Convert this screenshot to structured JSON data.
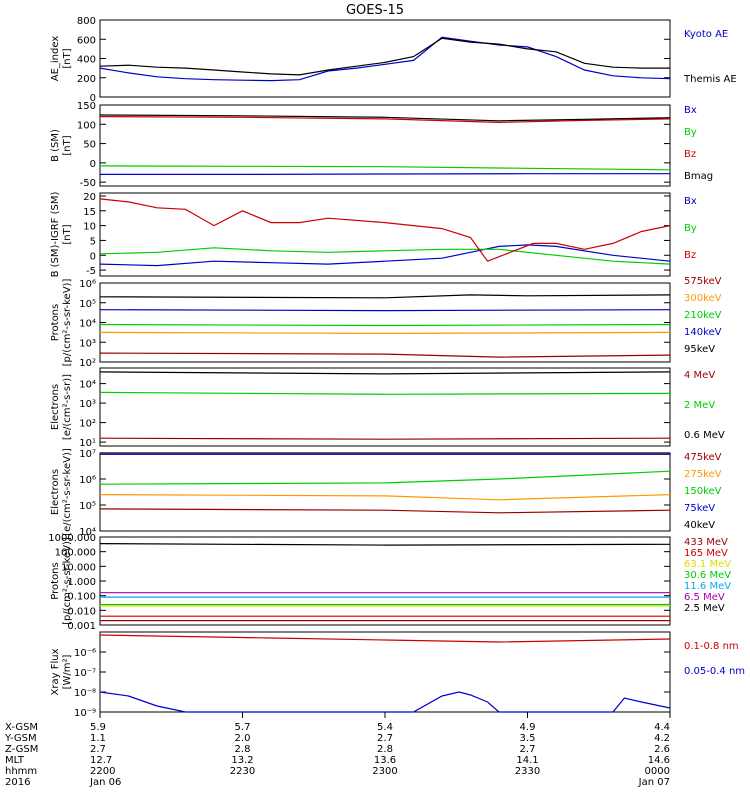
{
  "title": "GOES-15",
  "colors": {
    "black": "#000000",
    "blue": "#0000cc",
    "green": "#00cc00",
    "red": "#cc0000",
    "darkred": "#990000",
    "orange": "#ff9900",
    "yellow": "#dddd00",
    "cyan": "#00aaee",
    "purple": "#aa00aa"
  },
  "chart_data": [
    {
      "type": "line",
      "id": "ae",
      "ylabel": [
        "AE_index",
        "[nT]"
      ],
      "ticks": [
        "0",
        "200",
        "400",
        "600",
        "800"
      ],
      "ylim": [
        0,
        800
      ],
      "scale": "linear",
      "series": [
        {
          "name": "Kyoto AE",
          "color": "blue",
          "x": [
            0,
            0.05,
            0.1,
            0.15,
            0.2,
            0.25,
            0.3,
            0.35,
            0.4,
            0.45,
            0.5,
            0.55,
            0.6,
            0.65,
            0.7,
            0.75,
            0.8,
            0.85,
            0.9,
            0.95,
            1
          ],
          "y": [
            300,
            250,
            210,
            190,
            180,
            175,
            170,
            180,
            270,
            300,
            340,
            380,
            620,
            580,
            540,
            520,
            420,
            280,
            220,
            200,
            190
          ]
        },
        {
          "name": "Themis AE",
          "color": "black",
          "x": [
            0,
            0.05,
            0.1,
            0.15,
            0.2,
            0.25,
            0.3,
            0.35,
            0.4,
            0.45,
            0.5,
            0.55,
            0.6,
            0.65,
            0.7,
            0.75,
            0.8,
            0.85,
            0.9,
            0.95,
            1
          ],
          "y": [
            320,
            330,
            310,
            300,
            280,
            260,
            240,
            230,
            280,
            320,
            360,
            420,
            610,
            570,
            550,
            500,
            470,
            350,
            310,
            300,
            300
          ]
        }
      ]
    },
    {
      "type": "line",
      "id": "bsm",
      "ylabel": [
        "B (SM)",
        "[nT]"
      ],
      "ticks": [
        "-50",
        "0",
        "50",
        "100",
        "150"
      ],
      "ylim": [
        -60,
        150
      ],
      "scale": "linear",
      "series": [
        {
          "name": "Bx",
          "color": "blue",
          "x": [
            0,
            0.25,
            0.5,
            0.75,
            1
          ],
          "y": [
            -30,
            -30,
            -29,
            -28,
            -28
          ]
        },
        {
          "name": "By",
          "color": "green",
          "x": [
            0,
            0.25,
            0.5,
            0.75,
            1
          ],
          "y": [
            -8,
            -9,
            -10,
            -14,
            -18
          ]
        },
        {
          "name": "Bz",
          "color": "red",
          "x": [
            0,
            0.25,
            0.5,
            0.7,
            0.85,
            1
          ],
          "y": [
            120,
            118,
            114,
            105,
            110,
            114
          ]
        },
        {
          "name": "Bmag",
          "color": "black",
          "x": [
            0,
            0.25,
            0.5,
            0.7,
            0.85,
            1
          ],
          "y": [
            124,
            122,
            118,
            109,
            113,
            117
          ]
        }
      ]
    },
    {
      "type": "line",
      "id": "bigrf",
      "ylabel": [
        "B (SM)-IGRF (SM)",
        "[nT]"
      ],
      "ticks": [
        "-5",
        "0",
        "5",
        "10",
        "15",
        "20"
      ],
      "ylim": [
        -7,
        21
      ],
      "scale": "linear",
      "series": [
        {
          "name": "Bx",
          "color": "blue",
          "x": [
            0,
            0.1,
            0.2,
            0.3,
            0.4,
            0.5,
            0.6,
            0.65,
            0.7,
            0.75,
            0.8,
            0.9,
            1
          ],
          "y": [
            -3,
            -3.5,
            -2,
            -2.5,
            -3,
            -2,
            -1,
            1,
            3,
            3.5,
            3,
            0,
            -2
          ]
        },
        {
          "name": "By",
          "color": "green",
          "x": [
            0,
            0.1,
            0.2,
            0.3,
            0.4,
            0.5,
            0.6,
            0.7,
            0.8,
            0.9,
            1
          ],
          "y": [
            0.5,
            1,
            2.5,
            1.5,
            1,
            1.5,
            2,
            2,
            0,
            -2,
            -3
          ]
        },
        {
          "name": "Bz",
          "color": "red",
          "x": [
            0,
            0.05,
            0.1,
            0.15,
            0.2,
            0.25,
            0.3,
            0.35,
            0.4,
            0.5,
            0.6,
            0.65,
            0.68,
            0.72,
            0.76,
            0.8,
            0.85,
            0.9,
            0.95,
            1
          ],
          "y": [
            19,
            18,
            16,
            15.5,
            10,
            15,
            11,
            11,
            12.5,
            11,
            9,
            6,
            -2,
            1,
            4,
            4,
            2,
            4,
            8,
            10
          ]
        }
      ]
    },
    {
      "type": "line",
      "id": "protons",
      "ylabel": [
        "Protons",
        "[p/(cm²-s-sr-keV)]"
      ],
      "ticks": [
        "10²",
        "10³",
        "10⁴",
        "10⁵",
        "10⁶"
      ],
      "ylim": [
        2,
        6
      ],
      "scale": "log",
      "series": [
        {
          "name": "575keV",
          "color": "darkred",
          "x": [
            0,
            0.5,
            0.7,
            1
          ],
          "y": [
            2.45,
            2.4,
            2.25,
            2.35
          ]
        },
        {
          "name": "300keV",
          "color": "orange",
          "x": [
            0,
            0.5,
            1
          ],
          "y": [
            3.5,
            3.45,
            3.5
          ]
        },
        {
          "name": "210keV",
          "color": "green",
          "x": [
            0,
            0.5,
            1
          ],
          "y": [
            3.9,
            3.85,
            3.9
          ]
        },
        {
          "name": "140keV",
          "color": "blue",
          "x": [
            0,
            0.5,
            1
          ],
          "y": [
            4.65,
            4.6,
            4.65
          ]
        },
        {
          "name": "95keV",
          "color": "black",
          "x": [
            0,
            0.5,
            0.65,
            0.75,
            1
          ],
          "y": [
            5.3,
            5.25,
            5.4,
            5.35,
            5.4
          ]
        }
      ]
    },
    {
      "type": "line",
      "id": "electrons-mev",
      "ylabel": [
        "Electrons",
        "[e/(cm²-s-sr)]"
      ],
      "ticks": [
        "10¹",
        "10²",
        "10³",
        "10⁴"
      ],
      "ylim": [
        0.8,
        4.8
      ],
      "scale": "log",
      "series": [
        {
          "name": "4 MeV",
          "color": "darkred",
          "x": [
            0,
            0.5,
            1
          ],
          "y": [
            1.2,
            1.15,
            1.2
          ]
        },
        {
          "name": "2 MeV",
          "color": "green",
          "x": [
            0,
            0.5,
            1
          ],
          "y": [
            3.55,
            3.45,
            3.5
          ]
        },
        {
          "name": "0.6 MeV",
          "color": "black",
          "x": [
            0,
            0.5,
            1
          ],
          "y": [
            4.6,
            4.5,
            4.6
          ]
        }
      ]
    },
    {
      "type": "line",
      "id": "electrons-kev",
      "ylabel": [
        "Electrons",
        "[e/(cm²-s-sr-keV)]"
      ],
      "ticks": [
        "10⁴",
        "10⁵",
        "10⁶",
        "10⁷"
      ],
      "ylim": [
        4,
        7
      ],
      "scale": "log",
      "series": [
        {
          "name": "475keV",
          "color": "darkred",
          "x": [
            0,
            0.5,
            0.7,
            1
          ],
          "y": [
            4.85,
            4.8,
            4.7,
            4.8
          ]
        },
        {
          "name": "275keV",
          "color": "orange",
          "x": [
            0,
            0.5,
            0.7,
            1
          ],
          "y": [
            5.4,
            5.35,
            5.2,
            5.4
          ]
        },
        {
          "name": "150keV",
          "color": "green",
          "x": [
            0,
            0.5,
            0.7,
            1
          ],
          "y": [
            5.8,
            5.85,
            6.0,
            6.3
          ]
        },
        {
          "name": "75keV",
          "color": "blue",
          "x": [
            0,
            0.5,
            1
          ],
          "y": [
            6.95,
            6.95,
            6.95
          ]
        },
        {
          "name": "40keV",
          "color": "black",
          "x": [
            0,
            0.5,
            1
          ],
          "y": [
            7.0,
            7.0,
            7.0
          ]
        }
      ]
    },
    {
      "type": "line",
      "id": "protons-mev",
      "ylabel": [
        "Protons",
        "[p/(cm²-s-sr-keV)]"
      ],
      "ticks": [
        "0.001",
        "0.010",
        "0.100",
        "1.000",
        "10.000",
        "100.000",
        "1000.000"
      ],
      "ylim": [
        -3,
        3
      ],
      "scale": "log",
      "series": [
        {
          "name": "433 MeV",
          "color": "darkred",
          "x": [
            0,
            0.5,
            1
          ],
          "y": [
            -2.7,
            -2.7,
            -2.7
          ]
        },
        {
          "name": "165 MeV",
          "color": "red",
          "x": [
            0,
            0.5,
            1
          ],
          "y": [
            -2.4,
            -2.4,
            -2.4
          ]
        },
        {
          "name": "63.1 MeV",
          "color": "yellow",
          "x": [
            0,
            0.5,
            1
          ],
          "y": [
            -1.7,
            -1.7,
            -1.7
          ]
        },
        {
          "name": "30.6 MeV",
          "color": "green",
          "x": [
            0,
            0.5,
            1
          ],
          "y": [
            -1.6,
            -1.6,
            -1.6
          ]
        },
        {
          "name": "11.6 MeV",
          "color": "cyan",
          "x": [
            0,
            0.5,
            1
          ],
          "y": [
            -1.1,
            -1.1,
            -1.1
          ]
        },
        {
          "name": "6.5 MeV",
          "color": "purple",
          "x": [
            0,
            0.5,
            1
          ],
          "y": [
            -0.8,
            -0.8,
            -0.8
          ]
        },
        {
          "name": "2.5 MeV",
          "color": "black",
          "x": [
            0,
            0.5,
            1
          ],
          "y": [
            2.55,
            2.45,
            2.5
          ]
        }
      ]
    },
    {
      "type": "line",
      "id": "xray",
      "ylabel": [
        "Xray Flux",
        "[W/m²]"
      ],
      "ticks": [
        "10⁻⁹",
        "10⁻⁸",
        "10⁻⁷",
        "10⁻⁶"
      ],
      "ylim": [
        -9,
        -5
      ],
      "scale": "log",
      "series": [
        {
          "name": "0.1-0.8 nm",
          "color": "red",
          "x": [
            0,
            0.3,
            0.5,
            0.7,
            1
          ],
          "y": [
            -5.15,
            -5.3,
            -5.4,
            -5.5,
            -5.35
          ]
        },
        {
          "name": "0.05-0.4 nm",
          "color": "blue",
          "x": [
            0,
            0.05,
            0.1,
            0.15,
            0.2,
            0.5,
            0.55,
            0.6,
            0.63,
            0.65,
            0.68,
            0.7,
            0.9,
            0.92,
            0.95,
            1
          ],
          "y": [
            -8.0,
            -8.2,
            -8.7,
            -9,
            -9,
            -9,
            -9,
            -8.2,
            -8.0,
            -8.15,
            -8.5,
            -9,
            -9,
            -8.3,
            -8.5,
            -8.8
          ]
        }
      ]
    }
  ],
  "footer": {
    "rows": [
      {
        "label": "X-GSM",
        "values": [
          "5.9",
          "5.7",
          "5.4",
          "4.9",
          "4.4"
        ]
      },
      {
        "label": "Y-GSM",
        "values": [
          "1.1",
          "2.0",
          "2.7",
          "3.5",
          "4.2"
        ]
      },
      {
        "label": "Z-GSM",
        "values": [
          "2.7",
          "2.8",
          "2.8",
          "2.7",
          "2.6"
        ]
      },
      {
        "label": "MLT",
        "values": [
          "12.7",
          "13.2",
          "13.6",
          "14.1",
          "14.6"
        ]
      },
      {
        "label": "hhmm",
        "values": [
          "2200",
          "2230",
          "2300",
          "2330",
          "0000"
        ]
      },
      {
        "label": "2016",
        "values": [
          "Jan 06",
          "",
          "",
          "",
          "Jan 07"
        ]
      }
    ]
  }
}
